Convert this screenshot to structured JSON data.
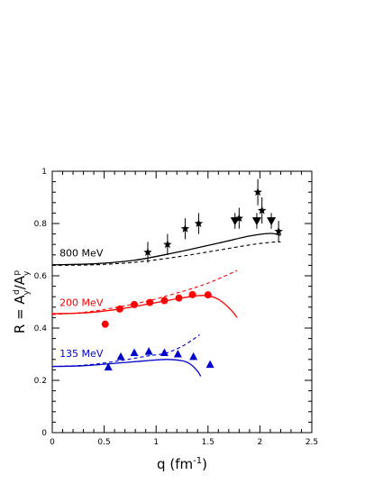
{
  "chart_data": {
    "type": "scatter",
    "xlabel": "q (fm",
    "xlabel_sup": "-1",
    "xlabel_close": ")",
    "ylabel": {
      "prefix": "R = A",
      "num_sub": "y",
      "num_sup": "d",
      "sep": "/A",
      "den_sub": "y",
      "den_sup": "p"
    },
    "xlim": [
      0,
      2.5
    ],
    "ylim": [
      0,
      1
    ],
    "x_ticks": [
      "0",
      "0.5",
      "1",
      "1.5",
      "2",
      "2.5"
    ],
    "y_ticks": [
      "0",
      "0.2",
      "0.4",
      "0.6",
      "0.8",
      "1"
    ],
    "grid": false,
    "series": [
      {
        "name": "800 MeV",
        "color": "#000000",
        "marker": "mixed",
        "points": [
          {
            "x": 0.92,
            "y": 0.69,
            "err": 0.04,
            "m": "star"
          },
          {
            "x": 1.11,
            "y": 0.72,
            "err": 0.04,
            "m": "star"
          },
          {
            "x": 1.28,
            "y": 0.78,
            "err": 0.04,
            "m": "star"
          },
          {
            "x": 1.41,
            "y": 0.8,
            "err": 0.04,
            "m": "star"
          },
          {
            "x": 1.76,
            "y": 0.81,
            "err": 0.03,
            "m": "triangle-down"
          },
          {
            "x": 1.8,
            "y": 0.82,
            "err": 0.04,
            "m": "star"
          },
          {
            "x": 1.97,
            "y": 0.81,
            "err": 0.03,
            "m": "triangle-down"
          },
          {
            "x": 1.98,
            "y": 0.92,
            "err": 0.05,
            "m": "star"
          },
          {
            "x": 2.02,
            "y": 0.85,
            "err": 0.05,
            "m": "star"
          },
          {
            "x": 2.11,
            "y": 0.81,
            "err": 0.03,
            "m": "triangle-down"
          },
          {
            "x": 2.18,
            "y": 0.77,
            "err": 0.04,
            "m": "star"
          }
        ],
        "theory_solid": [
          [
            0,
            0.642
          ],
          [
            0.4,
            0.646
          ],
          [
            0.8,
            0.66
          ],
          [
            1.2,
            0.69
          ],
          [
            1.6,
            0.725
          ],
          [
            1.9,
            0.752
          ],
          [
            2.1,
            0.762
          ],
          [
            2.2,
            0.755
          ]
        ],
        "theory_dashed": [
          [
            0,
            0.64
          ],
          [
            0.4,
            0.642
          ],
          [
            0.8,
            0.652
          ],
          [
            1.2,
            0.672
          ],
          [
            1.6,
            0.698
          ],
          [
            1.9,
            0.718
          ],
          [
            2.1,
            0.728
          ],
          [
            2.2,
            0.73
          ]
        ]
      },
      {
        "name": "200 MeV",
        "color": "#ff0000",
        "marker": "circle",
        "points": [
          {
            "x": 0.51,
            "y": 0.415
          },
          {
            "x": 0.65,
            "y": 0.473
          },
          {
            "x": 0.79,
            "y": 0.49
          },
          {
            "x": 0.94,
            "y": 0.498
          },
          {
            "x": 1.08,
            "y": 0.505
          },
          {
            "x": 1.22,
            "y": 0.515
          },
          {
            "x": 1.35,
            "y": 0.528
          },
          {
            "x": 1.5,
            "y": 0.527
          }
        ],
        "theory_solid": [
          [
            0,
            0.455
          ],
          [
            0.3,
            0.458
          ],
          [
            0.6,
            0.47
          ],
          [
            0.9,
            0.49
          ],
          [
            1.2,
            0.512
          ],
          [
            1.45,
            0.525
          ],
          [
            1.6,
            0.51
          ],
          [
            1.72,
            0.47
          ],
          [
            1.78,
            0.44
          ]
        ],
        "theory_dashed": [
          [
            0,
            0.452
          ],
          [
            0.3,
            0.46
          ],
          [
            0.6,
            0.478
          ],
          [
            0.9,
            0.502
          ],
          [
            1.2,
            0.534
          ],
          [
            1.5,
            0.572
          ],
          [
            1.78,
            0.62
          ]
        ]
      },
      {
        "name": "135 MeV",
        "color": "#0000cc",
        "marker": "triangle-up",
        "points": [
          {
            "x": 0.54,
            "y": 0.25
          },
          {
            "x": 0.66,
            "y": 0.29
          },
          {
            "x": 0.79,
            "y": 0.305
          },
          {
            "x": 0.93,
            "y": 0.31
          },
          {
            "x": 1.08,
            "y": 0.305
          },
          {
            "x": 1.21,
            "y": 0.3
          },
          {
            "x": 1.36,
            "y": 0.29
          },
          {
            "x": 1.52,
            "y": 0.26
          }
        ],
        "theory_solid": [
          [
            0,
            0.253
          ],
          [
            0.3,
            0.256
          ],
          [
            0.6,
            0.265
          ],
          [
            0.9,
            0.275
          ],
          [
            1.1,
            0.28
          ],
          [
            1.25,
            0.275
          ],
          [
            1.33,
            0.262
          ],
          [
            1.4,
            0.235
          ],
          [
            1.43,
            0.215
          ]
        ],
        "theory_dashed": [
          [
            0,
            0.253
          ],
          [
            0.3,
            0.258
          ],
          [
            0.6,
            0.272
          ],
          [
            0.9,
            0.292
          ],
          [
            1.1,
            0.305
          ],
          [
            1.25,
            0.33
          ],
          [
            1.35,
            0.355
          ],
          [
            1.42,
            0.375
          ]
        ]
      }
    ]
  }
}
